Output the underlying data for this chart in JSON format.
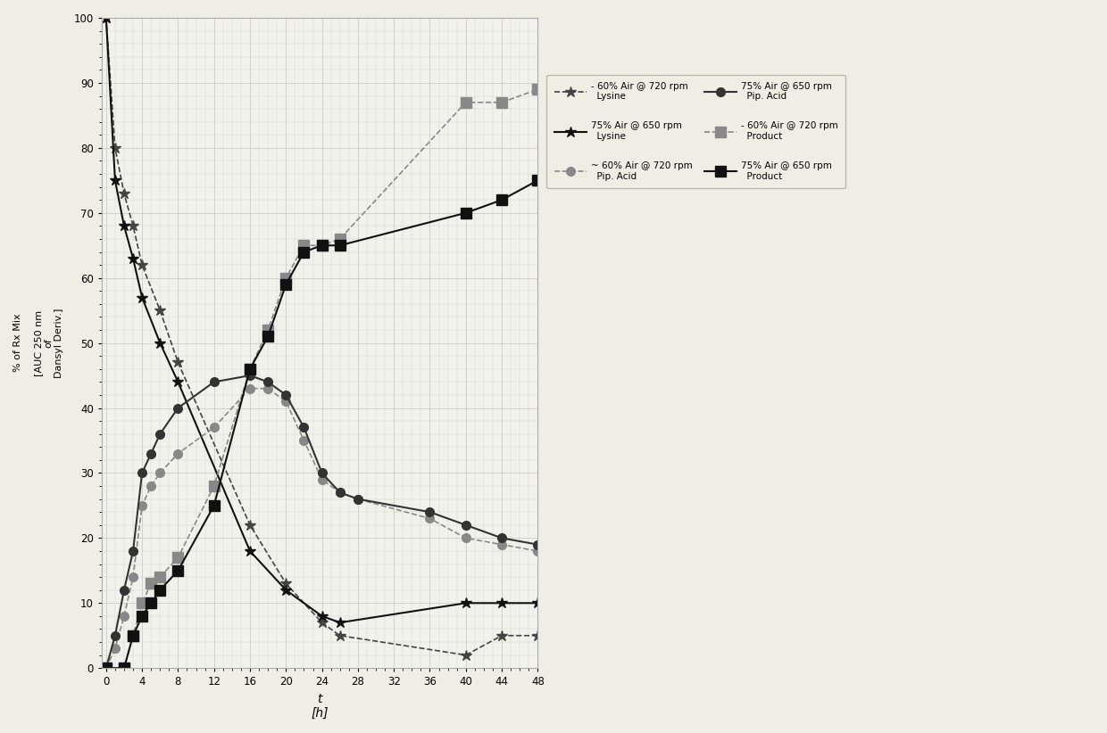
{
  "xlabel": "t\n[h]",
  "ylabel": "% of Rx Mix\n\n[AUC 250 nm\nof\nDansyl Deriv.]",
  "xlim": [
    -0.5,
    48
  ],
  "ylim": [
    0,
    100
  ],
  "xticks": [
    0,
    4,
    8,
    12,
    16,
    20,
    24,
    28,
    32,
    36,
    40,
    44,
    48
  ],
  "yticks": [
    0,
    10,
    20,
    30,
    40,
    50,
    60,
    70,
    80,
    90,
    100
  ],
  "series": [
    {
      "label": "- 60% Air @ 720 rpm\n  Lysine",
      "color": "#444444",
      "linestyle": "--",
      "marker": "*",
      "markersize": 9,
      "linewidth": 1.2,
      "x": [
        0,
        1,
        2,
        3,
        4,
        6,
        8,
        16,
        20,
        24,
        26,
        40,
        44,
        48
      ],
      "y": [
        100,
        80,
        73,
        68,
        62,
        55,
        47,
        22,
        13,
        7,
        5,
        2,
        5,
        5
      ]
    },
    {
      "label": "75% Air @ 650 rpm\n  Lysine",
      "color": "#111111",
      "linestyle": "-",
      "marker": "*",
      "markersize": 9,
      "linewidth": 1.5,
      "x": [
        0,
        1,
        2,
        3,
        4,
        6,
        8,
        16,
        20,
        24,
        26,
        40,
        44,
        48
      ],
      "y": [
        100,
        75,
        68,
        63,
        57,
        50,
        44,
        18,
        12,
        8,
        7,
        10,
        10,
        10
      ]
    },
    {
      "label": "~ 60% Air @ 720 rpm\n  Pip. Acid",
      "color": "#888888",
      "linestyle": "--",
      "marker": "o",
      "markersize": 7,
      "linewidth": 1.2,
      "x": [
        0,
        1,
        2,
        3,
        4,
        5,
        6,
        8,
        12,
        16,
        18,
        20,
        22,
        24,
        26,
        28,
        36,
        40,
        44,
        48
      ],
      "y": [
        0,
        3,
        8,
        14,
        25,
        28,
        30,
        33,
        37,
        43,
        43,
        41,
        35,
        29,
        27,
        26,
        23,
        20,
        19,
        18
      ]
    },
    {
      "label": "75% Air @ 650 rpm\n  Pip. Acid",
      "color": "#333333",
      "linestyle": "-",
      "marker": "o",
      "markersize": 7,
      "linewidth": 1.5,
      "x": [
        0,
        1,
        2,
        3,
        4,
        5,
        6,
        8,
        12,
        16,
        18,
        20,
        22,
        24,
        26,
        28,
        36,
        40,
        44,
        48
      ],
      "y": [
        0,
        5,
        12,
        18,
        30,
        33,
        36,
        40,
        44,
        45,
        44,
        42,
        37,
        30,
        27,
        26,
        24,
        22,
        20,
        19
      ]
    },
    {
      "label": "- 60% Air @ 720 rpm\n  Product",
      "color": "#888888",
      "linestyle": "--",
      "marker": "s",
      "markersize": 8,
      "linewidth": 1.2,
      "x": [
        0,
        2,
        3,
        4,
        5,
        6,
        8,
        12,
        16,
        18,
        20,
        22,
        24,
        26,
        40,
        44,
        48
      ],
      "y": [
        0,
        0,
        5,
        10,
        13,
        14,
        17,
        28,
        46,
        52,
        60,
        65,
        65,
        66,
        87,
        87,
        89
      ]
    },
    {
      "label": "75% Air @ 650 rpm\n  Product",
      "color": "#111111",
      "linestyle": "-",
      "marker": "s",
      "markersize": 8,
      "linewidth": 1.5,
      "x": [
        0,
        2,
        3,
        4,
        5,
        6,
        8,
        12,
        16,
        18,
        20,
        22,
        24,
        26,
        40,
        44,
        48
      ],
      "y": [
        0,
        0,
        5,
        8,
        10,
        12,
        15,
        25,
        46,
        51,
        59,
        64,
        65,
        65,
        70,
        72,
        75
      ]
    }
  ],
  "legend_entries": [
    [
      "- 60% Air @ 720 rpm\nLysine",
      "75% Air @ 650 rpm\nLysine"
    ],
    [
      "~ 60% Air @ 720 rpm\nPip. Acid",
      "75% Air @ 650 rpm\nPip. Acid"
    ],
    [
      "- 60% Air @ 720 rpm\nProduct",
      "75% Air @ 650 rpm\nProduct"
    ]
  ],
  "background_color": "#f2f2ec",
  "grid_color": "#c8c8c0",
  "figure_background": "#eeeee4"
}
